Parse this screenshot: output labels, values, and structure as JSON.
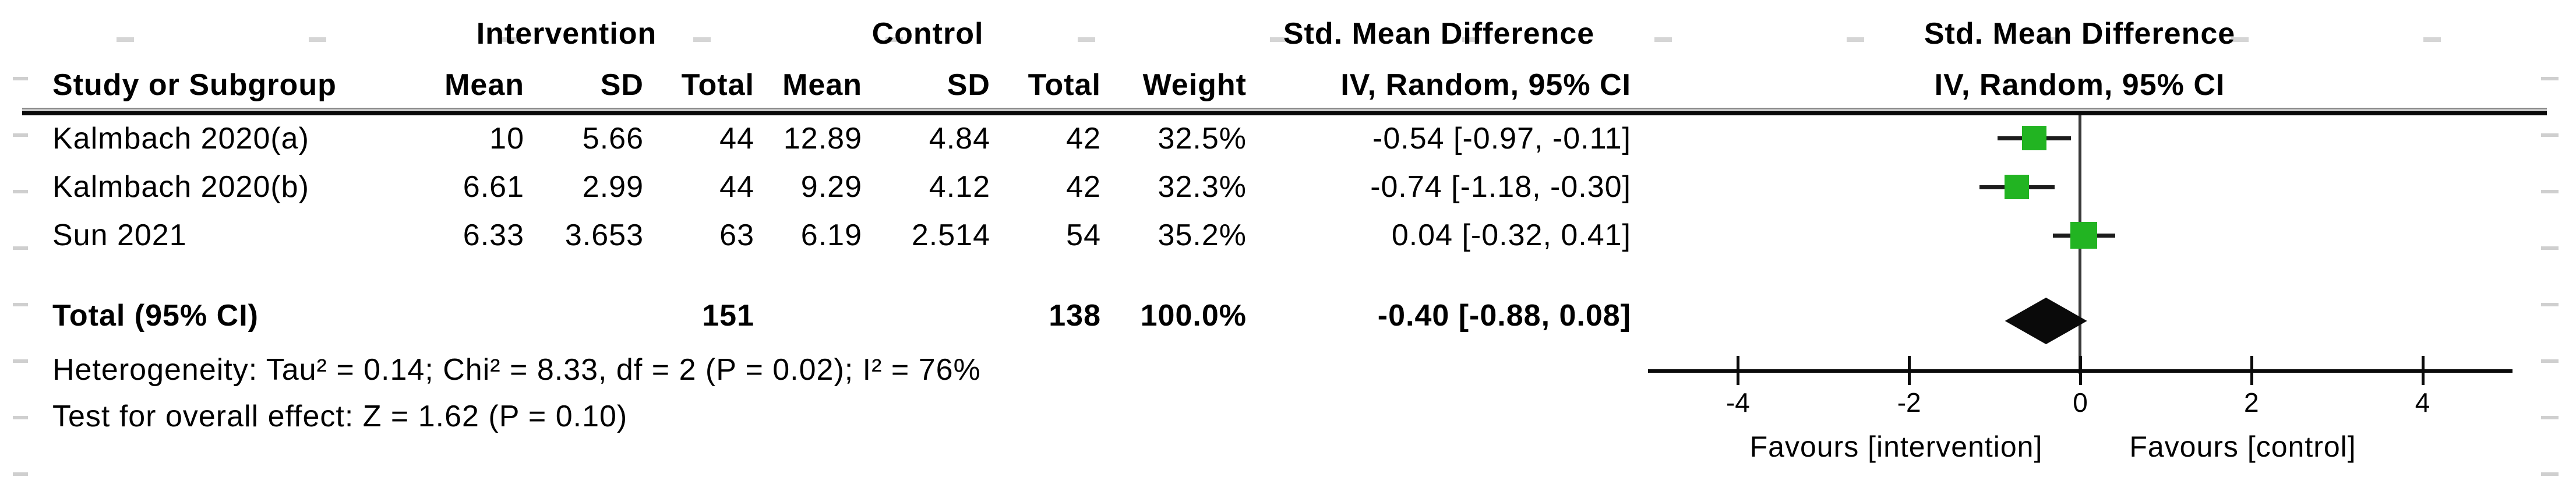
{
  "table": {
    "group_headers": {
      "intervention": "Intervention",
      "control": "Control",
      "smd_left": "Std. Mean Difference",
      "smd_right": "Std. Mean Difference"
    },
    "col_headers": {
      "study": "Study or Subgroup",
      "i_mean": "Mean",
      "i_sd": "SD",
      "i_total": "Total",
      "c_mean": "Mean",
      "c_sd": "SD",
      "c_total": "Total",
      "weight": "Weight",
      "ci": "IV, Random, 95% CI",
      "ci_right": "IV, Random, 95% CI"
    },
    "rows": [
      {
        "study": "Kalmbach 2020(a)",
        "i_mean": "10",
        "i_sd": "5.66",
        "i_total": "44",
        "c_mean": "12.89",
        "c_sd": "4.84",
        "c_total": "42",
        "weight": "32.5%",
        "ci": "-0.54 [-0.97, -0.11]"
      },
      {
        "study": "Kalmbach 2020(b)",
        "i_mean": "6.61",
        "i_sd": "2.99",
        "i_total": "44",
        "c_mean": "9.29",
        "c_sd": "4.12",
        "c_total": "42",
        "weight": "32.3%",
        "ci": "-0.74 [-1.18, -0.30]"
      },
      {
        "study": "Sun 2021",
        "i_mean": "6.33",
        "i_sd": "3.653",
        "i_total": "63",
        "c_mean": "6.19",
        "c_sd": "2.514",
        "c_total": "54",
        "weight": "35.2%",
        "ci": "0.04 [-0.32, 0.41]"
      }
    ],
    "total_row": {
      "label": "Total (95% CI)",
      "i_total": "151",
      "c_total": "138",
      "weight": "100.0%",
      "ci": "-0.40 [-0.88, 0.08]"
    },
    "heterogeneity": "Heterogeneity: Tau² = 0.14; Chi² = 8.33, df = 2 (P = 0.02); I² = 76%",
    "overall_effect": "Test for overall effect: Z = 1.62 (P = 0.10)"
  },
  "chart_data": {
    "type": "scatter",
    "subtype": "forest_plot",
    "title": "Std. Mean Difference",
    "model_label": "IV, Random, 95% CI",
    "studies": [
      {
        "name": "Kalmbach 2020(a)",
        "smd": -0.54,
        "ci_low": -0.97,
        "ci_high": -0.11,
        "weight_pct": 32.5
      },
      {
        "name": "Kalmbach 2020(b)",
        "smd": -0.74,
        "ci_low": -1.18,
        "ci_high": -0.3,
        "weight_pct": 32.3
      },
      {
        "name": "Sun 2021",
        "smd": 0.04,
        "ci_low": -0.32,
        "ci_high": 0.41,
        "weight_pct": 35.2
      }
    ],
    "total": {
      "label": "Total (95% CI)",
      "smd": -0.4,
      "ci_low": -0.88,
      "ci_high": 0.08
    },
    "x_ticks": [
      -4,
      -2,
      0,
      2,
      4
    ],
    "xlim": [
      -5.05,
      5.05
    ],
    "zero_line_at": 0,
    "grid": false,
    "favours_left": "Favours [intervention]",
    "favours_right": "Favours [control]",
    "marker_color": "#22b422",
    "diamond_color": "#0a0a0a",
    "axis_color": "#0a0a0a"
  }
}
